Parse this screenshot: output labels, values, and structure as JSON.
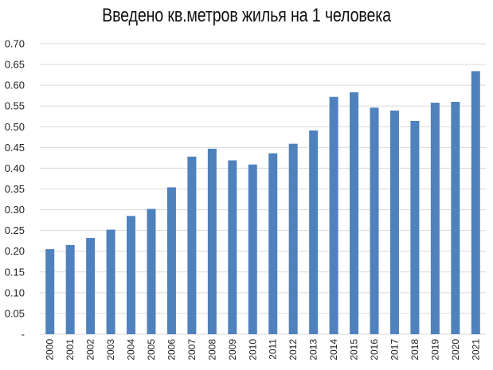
{
  "chart_data": {
    "type": "bar",
    "title": "Введено кв.метров жилья на 1 человека",
    "xlabel": "",
    "ylabel": "",
    "categories": [
      "2000",
      "2001",
      "2002",
      "2003",
      "2004",
      "2005",
      "2006",
      "2007",
      "2008",
      "2009",
      "2010",
      "2011",
      "2012",
      "2013",
      "2014",
      "2015",
      "2016",
      "2017",
      "2018",
      "2019",
      "2020",
      "2021"
    ],
    "values": [
      0.205,
      0.215,
      0.232,
      0.252,
      0.285,
      0.302,
      0.354,
      0.428,
      0.447,
      0.419,
      0.409,
      0.436,
      0.459,
      0.491,
      0.572,
      0.583,
      0.546,
      0.539,
      0.514,
      0.558,
      0.56,
      0.634
    ],
    "ylim": [
      0,
      0.7
    ],
    "y_ticks": [
      "-",
      "0.05",
      "0.10",
      "0.15",
      "0.20",
      "0.25",
      "0.30",
      "0.35",
      "0.40",
      "0.45",
      "0.50",
      "0.55",
      "0.60",
      "0.65",
      "0.70"
    ],
    "grid": true,
    "bar_color": "#4F81BD",
    "grid_color": "#d9d9d9"
  }
}
